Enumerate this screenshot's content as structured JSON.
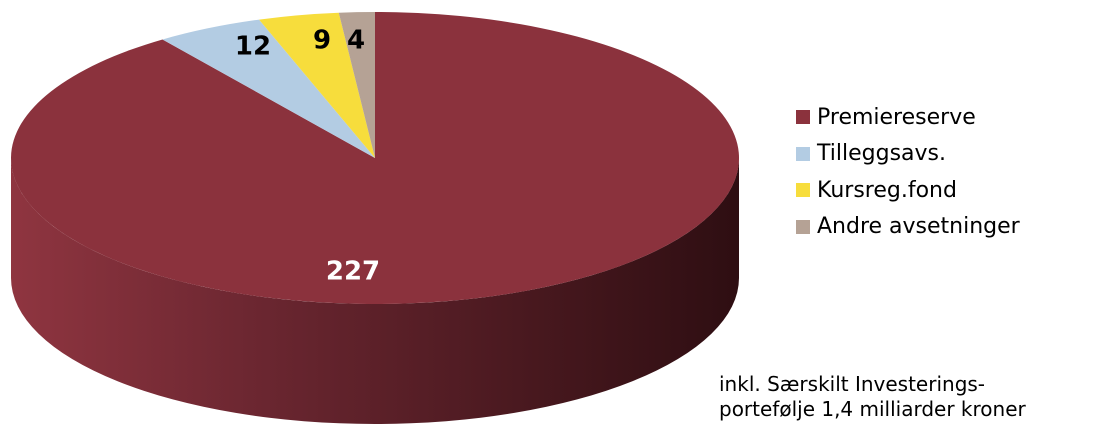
{
  "chart_data": {
    "type": "pie",
    "categories": [
      "Premiereserve",
      "Tilleggsavs.",
      "Kursreg.fond",
      "Andre avsetninger"
    ],
    "values": [
      227,
      12,
      9,
      4
    ],
    "data_labels": [
      "227",
      "12",
      "9",
      "4"
    ],
    "colors": [
      "#8b323d",
      "#b3cce3",
      "#f7dd3c",
      "#b5a295"
    ],
    "label_colors": [
      "#ffffff",
      "#000000",
      "#000000",
      "#000000"
    ],
    "style": "3d",
    "legend_position": "right",
    "title": "",
    "start_angle_deg": 0,
    "direction": "clockwise"
  },
  "legend": {
    "items": [
      {
        "label": "Premiereserve",
        "color": "#8b323d"
      },
      {
        "label": "Tilleggsavs.",
        "color": "#b3cce3"
      },
      {
        "label": "Kursreg.fond",
        "color": "#f7dd3c"
      },
      {
        "label": "Andre avsetninger",
        "color": "#b5a295"
      }
    ]
  },
  "note": {
    "line1": "inkl. Særskilt Investerings-",
    "line2": "portefølje  1,4 milliarder kroner"
  }
}
